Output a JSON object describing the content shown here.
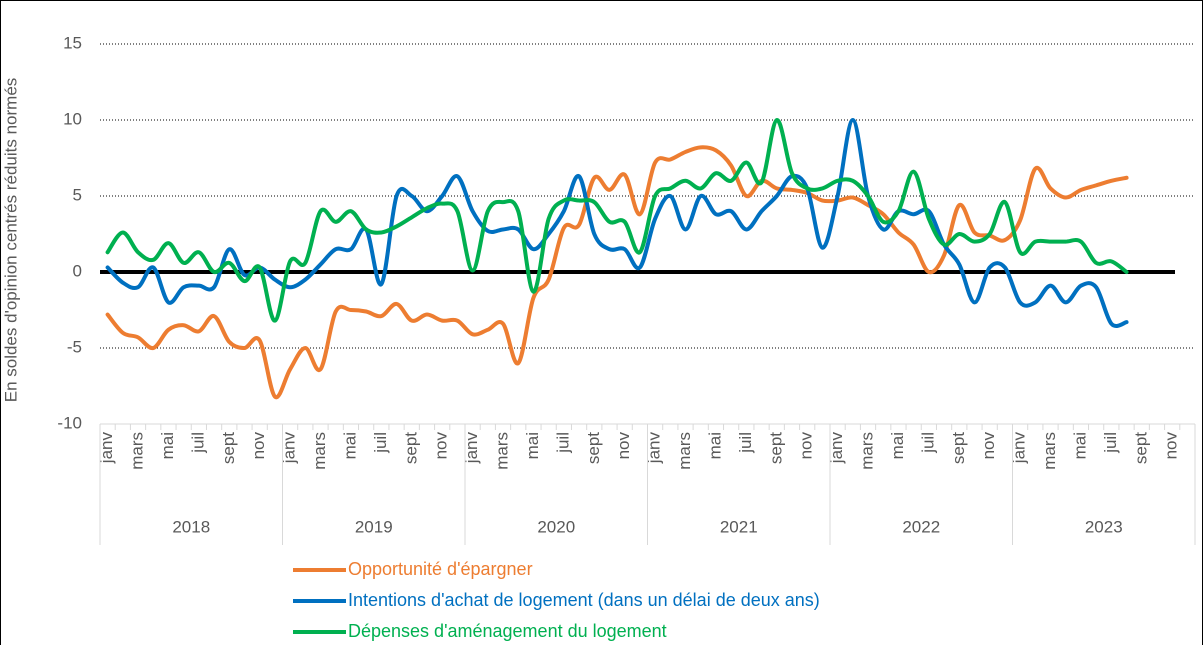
{
  "chart_data": {
    "type": "line",
    "y_label": "En soldes d'opinion centrés réduits normés",
    "categories": [
      "janv",
      null,
      "mars",
      null,
      "mai",
      null,
      "juil",
      null,
      "sept",
      null,
      "nov",
      null,
      "janv",
      null,
      "mars",
      null,
      "mai",
      null,
      "juil",
      null,
      "sept",
      null,
      "nov",
      null,
      "janv",
      null,
      "mars",
      null,
      "mai",
      null,
      "juil",
      null,
      "sept",
      null,
      "nov",
      null,
      "janv",
      null,
      "mars",
      null,
      "mai",
      null,
      "juil",
      null,
      "sept",
      null,
      "nov",
      null,
      "janv",
      null,
      "mars",
      null,
      "mai",
      null,
      "juil",
      null,
      "sept",
      null,
      "nov",
      null,
      "janv",
      null,
      "mars",
      null,
      "mai",
      null,
      "juil",
      null,
      "sept",
      null,
      "nov",
      null
    ],
    "year_groups": [
      "2018",
      "2019",
      "2020",
      "2021",
      "2022",
      "2023"
    ],
    "ylim": [
      -10,
      15
    ],
    "yticks": [
      -10,
      -5,
      0,
      5,
      10,
      15
    ],
    "grid": true,
    "series": [
      {
        "name": "Opportunité d'épargner",
        "color": "#ed7d31",
        "values": [
          -2.8,
          -4.0,
          -4.3,
          -5.0,
          -3.8,
          -3.5,
          -3.9,
          -2.9,
          -4.6,
          -5.0,
          -4.5,
          -8.2,
          -6.4,
          -5.0,
          -6.4,
          -2.6,
          -2.5,
          -2.6,
          -2.9,
          -2.1,
          -3.2,
          -2.8,
          -3.2,
          -3.2,
          -4.1,
          -3.8,
          -3.4,
          -6.0,
          -1.7,
          -0.5,
          2.9,
          3.1,
          6.2,
          5.4,
          6.4,
          3.8,
          7.2,
          7.4,
          7.9,
          8.2,
          8.0,
          7.0,
          5.0,
          6.0,
          5.5,
          5.4,
          5.2,
          4.7,
          4.7,
          4.9,
          4.4,
          3.8,
          2.6,
          1.8,
          0.0,
          1.1,
          4.4,
          2.6,
          2.4,
          2.1,
          3.4,
          6.8,
          5.5,
          4.9,
          5.4,
          5.7,
          6.0,
          6.2,
          null,
          null,
          null,
          null
        ]
      },
      {
        "name": "Intentions d'achat de logement (dans un délai de deux ans)",
        "color": "#0070c0",
        "values": [
          0.3,
          -0.7,
          -1.0,
          0.3,
          -2.0,
          -1.0,
          -0.9,
          -1.0,
          1.5,
          -0.2,
          0.3,
          -0.5,
          -1.0,
          -0.5,
          0.5,
          1.5,
          1.5,
          2.8,
          -0.8,
          5.0,
          5.0,
          4.0,
          5.0,
          6.3,
          4.0,
          2.7,
          2.8,
          2.8,
          1.5,
          2.5,
          4.0,
          6.3,
          2.5,
          1.5,
          1.5,
          0.3,
          3.5,
          5.0,
          2.8,
          5.0,
          3.8,
          4.0,
          2.8,
          4.0,
          5.0,
          6.3,
          5.5,
          1.6,
          5.0,
          10.0,
          5.0,
          2.8,
          4.0,
          3.8,
          4.0,
          1.8,
          0.5,
          -2.0,
          0.3,
          0.3,
          -2.0,
          -2.0,
          -0.9,
          -2.0,
          -0.9,
          -1.0,
          -3.4,
          -3.3,
          null,
          null,
          null,
          null
        ]
      },
      {
        "name": "Dépenses d'aménagement du logement",
        "color": "#00b050",
        "values": [
          1.3,
          2.6,
          1.3,
          0.8,
          1.9,
          0.6,
          1.3,
          0.0,
          0.6,
          -0.6,
          0.3,
          -3.2,
          0.7,
          0.6,
          4.0,
          3.3,
          4.0,
          2.8,
          2.6,
          3.0,
          3.6,
          4.2,
          4.5,
          4.0,
          0.1,
          4.0,
          4.6,
          4.0,
          -1.3,
          3.5,
          4.7,
          4.7,
          4.6,
          3.3,
          3.3,
          1.3,
          5.0,
          5.5,
          6.0,
          5.5,
          6.5,
          6.0,
          7.2,
          5.9,
          10.0,
          6.5,
          5.5,
          5.5,
          6.0,
          6.0,
          5.0,
          3.3,
          4.0,
          6.6,
          3.5,
          1.8,
          2.5,
          2.0,
          2.5,
          4.6,
          1.3,
          2.0,
          2.0,
          2.0,
          2.0,
          0.6,
          0.7,
          0.0,
          null,
          null,
          null,
          null
        ]
      }
    ]
  }
}
